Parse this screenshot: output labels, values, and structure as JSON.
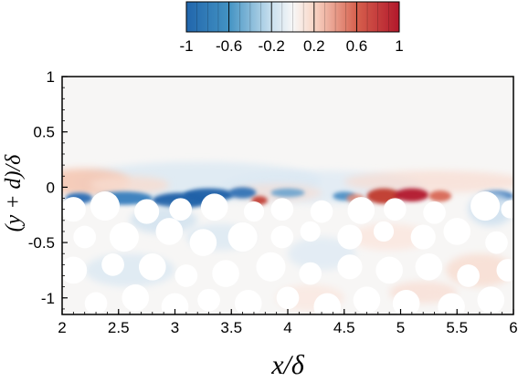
{
  "chart_data": {
    "type": "heatmap",
    "xlabel": "x/δ",
    "ylabel": "(y + d)/δ",
    "xlim": [
      2,
      6
    ],
    "ylim": [
      -1.15,
      1
    ],
    "xticks": [
      "2",
      "2.5",
      "3",
      "3.5",
      "4",
      "4.5",
      "5",
      "5.5",
      "6"
    ],
    "yticks": [
      "1",
      "0.5",
      "0",
      "-0.5",
      "-1"
    ],
    "colorbar": {
      "ticks": [
        "-1",
        "-0.6",
        "-0.2",
        "0.2",
        "0.6",
        "1"
      ],
      "range": [
        -1,
        1
      ],
      "levels": 21,
      "colormap": "blue-white-red",
      "neg_color": "#1f5fa8",
      "zero_color": "#f7f7f7",
      "pos_color": "#b2182b"
    },
    "features": {
      "interface_y": -0.1,
      "grain_description": "white circular obstacles filling the region below the interface",
      "strong_positive_x": [
        4.75,
        5.25
      ],
      "strong_negative_x": [
        2.1,
        3.6
      ]
    }
  }
}
